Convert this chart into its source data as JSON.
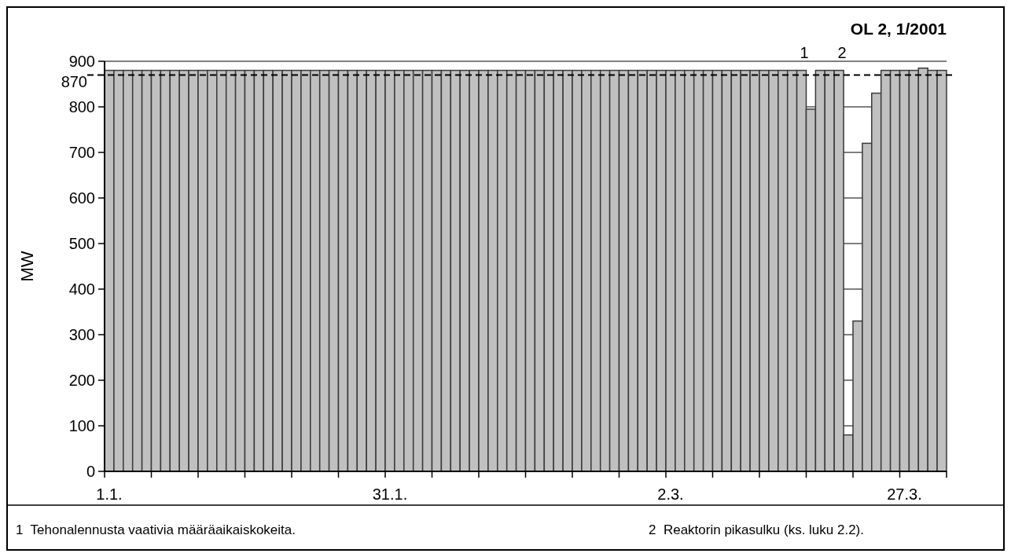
{
  "chart_data": {
    "type": "bar",
    "title": "OL 2, 1/2001",
    "ylabel": "MW",
    "color": "#c0c0c0",
    "categories": [
      "1.1.",
      null,
      null,
      null,
      null,
      null,
      null,
      null,
      null,
      null,
      null,
      null,
      null,
      null,
      null,
      null,
      null,
      null,
      null,
      null,
      null,
      null,
      null,
      null,
      null,
      null,
      null,
      null,
      null,
      null,
      "31.1.",
      null,
      null,
      null,
      null,
      null,
      null,
      null,
      null,
      null,
      null,
      null,
      null,
      null,
      null,
      null,
      null,
      null,
      null,
      null,
      null,
      null,
      null,
      null,
      null,
      null,
      null,
      null,
      null,
      null,
      "2.3.",
      null,
      null,
      null,
      null,
      null,
      null,
      null,
      null,
      null,
      null,
      null,
      null,
      null,
      null,
      null,
      null,
      null,
      null,
      null,
      null,
      null,
      null,
      null,
      null,
      "27.3.",
      null,
      null,
      null,
      null
    ],
    "values": [
      880,
      880,
      880,
      880,
      880,
      880,
      880,
      880,
      880,
      880,
      880,
      880,
      880,
      880,
      880,
      880,
      880,
      880,
      880,
      880,
      880,
      880,
      880,
      880,
      880,
      880,
      880,
      880,
      880,
      880,
      880,
      880,
      880,
      880,
      880,
      880,
      880,
      880,
      880,
      880,
      880,
      880,
      880,
      880,
      880,
      880,
      880,
      880,
      880,
      880,
      880,
      880,
      880,
      880,
      880,
      880,
      880,
      880,
      880,
      880,
      880,
      880,
      880,
      880,
      880,
      880,
      880,
      880,
      880,
      880,
      880,
      880,
      880,
      880,
      880,
      795,
      880,
      880,
      880,
      80,
      330,
      720,
      830,
      880,
      880,
      880,
      880,
      885,
      880,
      880
    ],
    "ylim": [
      0,
      900
    ],
    "yticks": [
      0,
      100,
      200,
      300,
      400,
      500,
      600,
      700,
      800,
      900
    ],
    "grid": "y",
    "ref_lines": [
      {
        "axis": "y",
        "value": 870,
        "label": "870",
        "line_style": "dashed",
        "color": "#000000"
      }
    ],
    "annotations": [
      "1",
      "2",
      "1  Tehonalennusta vaativia määräaikaiskokeita.",
      "2  Reaktorin pikasulku (ks. luku 2.2)."
    ]
  }
}
